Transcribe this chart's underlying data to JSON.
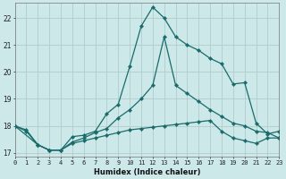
{
  "xlabel": "Humidex (Indice chaleur)",
  "background_color": "#cce8e8",
  "grid_color": "#b0cccc",
  "line_color": "#1a6b6b",
  "x_ticks": [
    0,
    1,
    2,
    3,
    4,
    5,
    6,
    7,
    8,
    9,
    10,
    11,
    12,
    13,
    14,
    15,
    16,
    17,
    18,
    19,
    20,
    21,
    22,
    23
  ],
  "y_ticks": [
    17,
    18,
    19,
    20,
    21,
    22
  ],
  "xlim": [
    0,
    23
  ],
  "ylim": [
    16.85,
    22.55
  ],
  "line1_x": [
    0,
    1,
    2,
    3,
    4,
    5,
    6,
    7,
    8,
    9,
    10,
    11,
    12,
    13,
    14,
    15,
    16,
    17,
    18,
    19,
    20,
    21,
    22,
    23
  ],
  "line1_y": [
    18.0,
    17.85,
    17.3,
    17.1,
    17.1,
    17.6,
    17.65,
    17.8,
    18.45,
    18.8,
    20.2,
    21.7,
    22.4,
    22.0,
    21.3,
    21.0,
    20.8,
    20.5,
    20.3,
    19.55,
    19.6,
    18.1,
    17.7,
    17.8
  ],
  "line2_x": [
    0,
    2,
    3,
    4,
    5,
    6,
    7,
    8,
    9,
    10,
    11,
    12,
    13,
    14,
    15,
    16,
    17,
    18,
    19,
    20,
    21,
    22,
    23
  ],
  "line2_y": [
    18.0,
    17.3,
    17.1,
    17.1,
    17.4,
    17.55,
    17.75,
    17.9,
    18.3,
    18.6,
    19.0,
    19.5,
    21.3,
    19.5,
    19.2,
    18.9,
    18.6,
    18.35,
    18.1,
    18.0,
    17.8,
    17.75,
    17.55
  ],
  "line3_x": [
    0,
    1,
    2,
    3,
    4,
    5,
    6,
    7,
    8,
    9,
    10,
    11,
    12,
    13,
    14,
    15,
    16,
    17,
    18,
    19,
    20,
    21,
    22,
    23
  ],
  "line3_y": [
    18.0,
    17.8,
    17.3,
    17.1,
    17.1,
    17.35,
    17.45,
    17.55,
    17.65,
    17.75,
    17.85,
    17.9,
    17.95,
    18.0,
    18.05,
    18.1,
    18.15,
    18.2,
    17.8,
    17.55,
    17.45,
    17.35,
    17.55,
    17.55
  ]
}
